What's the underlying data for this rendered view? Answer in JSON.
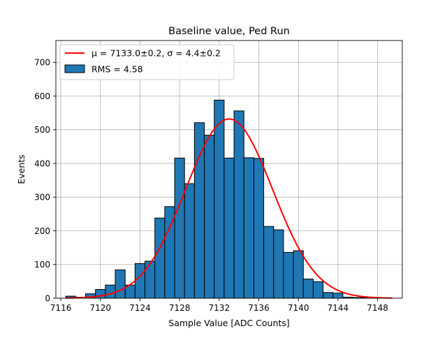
{
  "chart_data": {
    "type": "bar",
    "title": "Baseline value, Ped Run",
    "xlabel": "Sample Value [ADC Counts]",
    "ylabel": "Events",
    "xlim": [
      7115.5,
      7150.5
    ],
    "ylim": [
      0,
      765
    ],
    "grid": true,
    "legend_position": "top-left",
    "x_ticks": [
      7116,
      7120,
      7124,
      7128,
      7132,
      7136,
      7140,
      7144,
      7148
    ],
    "y_ticks": [
      0,
      100,
      200,
      300,
      400,
      500,
      600,
      700
    ],
    "histogram": {
      "name": "RMS = 4.58",
      "color": "#1f77b4",
      "edge_color": "#000000",
      "bin_edges": [
        7116.5,
        7117.5,
        7118.5,
        7119.5,
        7120.5,
        7121.5,
        7122.5,
        7123.5,
        7124.5,
        7125.5,
        7126.5,
        7127.5,
        7128.5,
        7129.5,
        7130.5,
        7131.5,
        7132.5,
        7133.5,
        7134.5,
        7135.5,
        7136.5,
        7137.5,
        7138.5,
        7139.5,
        7140.5,
        7141.5,
        7142.5,
        7143.5,
        7144.5,
        7145.5,
        7146.5,
        7147.5,
        7148.5
      ],
      "counts": [
        6,
        3,
        13,
        26,
        39,
        84,
        39,
        103,
        110,
        238,
        272,
        416,
        340,
        521,
        484,
        588,
        416,
        556,
        417,
        415,
        213,
        203,
        136,
        141,
        57,
        49,
        17,
        15,
        3,
        2,
        1,
        1
      ]
    },
    "fit": {
      "name_prefix": "μ = 7133.0±0.2, σ = 4.4±0.2",
      "mu": 7133.0,
      "sigma": 4.4,
      "amplitude": 532,
      "x_range": [
        7116.5,
        7149.5
      ],
      "color": "#ff0000"
    }
  }
}
